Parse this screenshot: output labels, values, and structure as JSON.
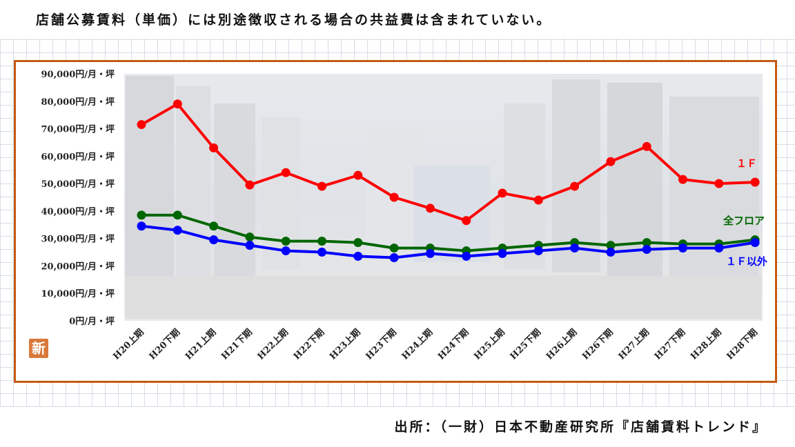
{
  "header_note": "店舗公募賃料（単価）には別途徴収される場合の共益費は含まれていない。",
  "source": "出所：（一財）日本不動産研究所『店舗賃料トレンド』",
  "logo_text": "新",
  "colors": {
    "frame": "#c55a11",
    "series_1f": "#ff0000",
    "series_all": "#006600",
    "series_non1f": "#0000ff"
  },
  "chart_data": {
    "type": "line",
    "x": [
      "H20上期",
      "H20下期",
      "H21上期",
      "H21下期",
      "H22上期",
      "H22下期",
      "H23上期",
      "H23下期",
      "H24上期",
      "H24下期",
      "H25上期",
      "H25下期",
      "H26上期",
      "H26下期",
      "H27上期",
      "H27下期",
      "H28上期",
      "H28下期"
    ],
    "ylim": [
      0,
      90000
    ],
    "yticks": [
      {
        "value": 0,
        "label": "0円/月・坪"
      },
      {
        "value": 10000,
        "label": "10,000円/月・坪"
      },
      {
        "value": 20000,
        "label": "20,000円/月・坪"
      },
      {
        "value": 30000,
        "label": "30,000円/月・坪"
      },
      {
        "value": 40000,
        "label": "40,000円/月・坪"
      },
      {
        "value": 50000,
        "label": "50,000円/月・坪"
      },
      {
        "value": 60000,
        "label": "60,000円/月・坪"
      },
      {
        "value": 70000,
        "label": "70,000円/月・坪"
      },
      {
        "value": 80000,
        "label": "80,000円/月・坪"
      },
      {
        "value": 90000,
        "label": "90,000円/月・坪"
      }
    ],
    "grid": false,
    "series": [
      {
        "name": "１Ｆ",
        "color": "#ff0000",
        "values": [
          71500,
          79000,
          63000,
          49500,
          54000,
          49000,
          53000,
          45000,
          41000,
          36500,
          46500,
          44000,
          49000,
          58000,
          63500,
          51500,
          50000,
          50500
        ]
      },
      {
        "name": "全フロア",
        "color": "#006600",
        "values": [
          38500,
          38500,
          34500,
          30500,
          29000,
          29000,
          28500,
          26500,
          26500,
          25500,
          26500,
          27500,
          28500,
          27500,
          28500,
          28000,
          28000,
          29500
        ]
      },
      {
        "name": "１Ｆ以外",
        "color": "#0000ff",
        "values": [
          34500,
          33000,
          29500,
          27500,
          25500,
          25000,
          23500,
          23000,
          24500,
          23500,
          24500,
          25500,
          26500,
          25000,
          26000,
          26500,
          26500,
          28500
        ]
      }
    ]
  }
}
